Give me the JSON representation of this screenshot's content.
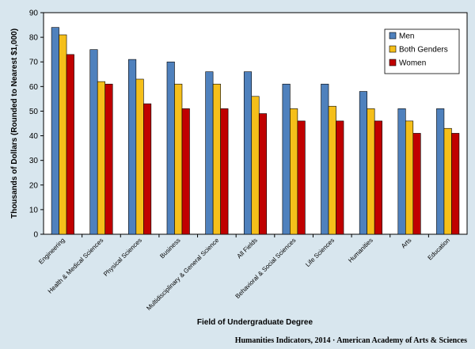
{
  "chart_data": {
    "type": "bar",
    "xlabel": "Field of Undergraduate Degree",
    "ylabel": "Thousands of Dollars (Rounded to Nearest $1,000)",
    "ylim": [
      0,
      90
    ],
    "yticks": [
      "0",
      "10",
      "20",
      "30",
      "40",
      "50",
      "60",
      "70",
      "80",
      "90"
    ],
    "grid": false,
    "legend_position": "top-right",
    "categories": [
      "Engineering",
      "Health & Medical Sciences",
      "Physical Sciences",
      "Business",
      "Multidisciplinary & General Science",
      "All Fields",
      "Behavioral & Social Sciences",
      "Life Sciences",
      "Humanities",
      "Arts",
      "Education"
    ],
    "series": [
      {
        "name": "Men",
        "color": "#4f81bd",
        "values": [
          84,
          75,
          71,
          70,
          66,
          66,
          61,
          61,
          58,
          51,
          51
        ]
      },
      {
        "name": "Both Genders",
        "color": "#f5bf1a",
        "values": [
          81,
          62,
          63,
          61,
          61,
          56,
          51,
          52,
          51,
          46,
          43
        ]
      },
      {
        "name": "Women",
        "color": "#c00000",
        "values": [
          73,
          61,
          53,
          51,
          51,
          49,
          46,
          46,
          46,
          41,
          41
        ]
      }
    ]
  },
  "credit": "Humanities Indicators, 2014 · American Academy of Arts & Sciences"
}
